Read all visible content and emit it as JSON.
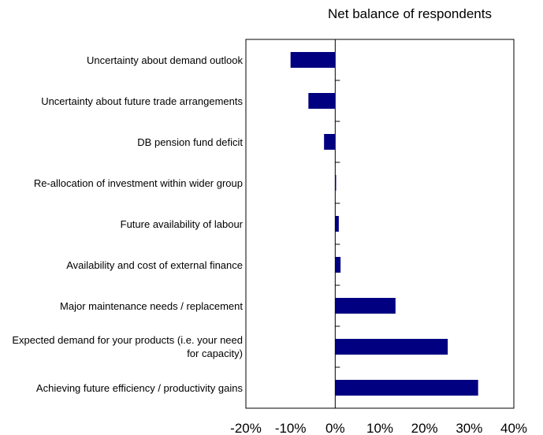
{
  "chart_data": {
    "type": "bar",
    "orientation": "horizontal",
    "title": "Net balance of respondents",
    "categories": [
      "Uncertainty about demand outlook",
      "Uncertainty about future trade arrangements",
      "DB pension fund deficit",
      "Re-allocation of investment within wider group",
      "Future availability of labour",
      "Availability and cost of external finance",
      "Major maintenance needs / replacement",
      "Expected demand for your products (i.e. your need for capacity)",
      "Achieving future efficiency / productivity gains"
    ],
    "values": [
      -10,
      -6,
      -2.5,
      0.2,
      0.8,
      1.2,
      13.5,
      25.2,
      32
    ],
    "xlim": [
      -20,
      40
    ],
    "xticks": [
      "-20%",
      "-10%",
      "0%",
      "10%",
      "20%",
      "30%",
      "40%"
    ],
    "bar_color": "#000080",
    "grid": false,
    "legend": "none"
  }
}
